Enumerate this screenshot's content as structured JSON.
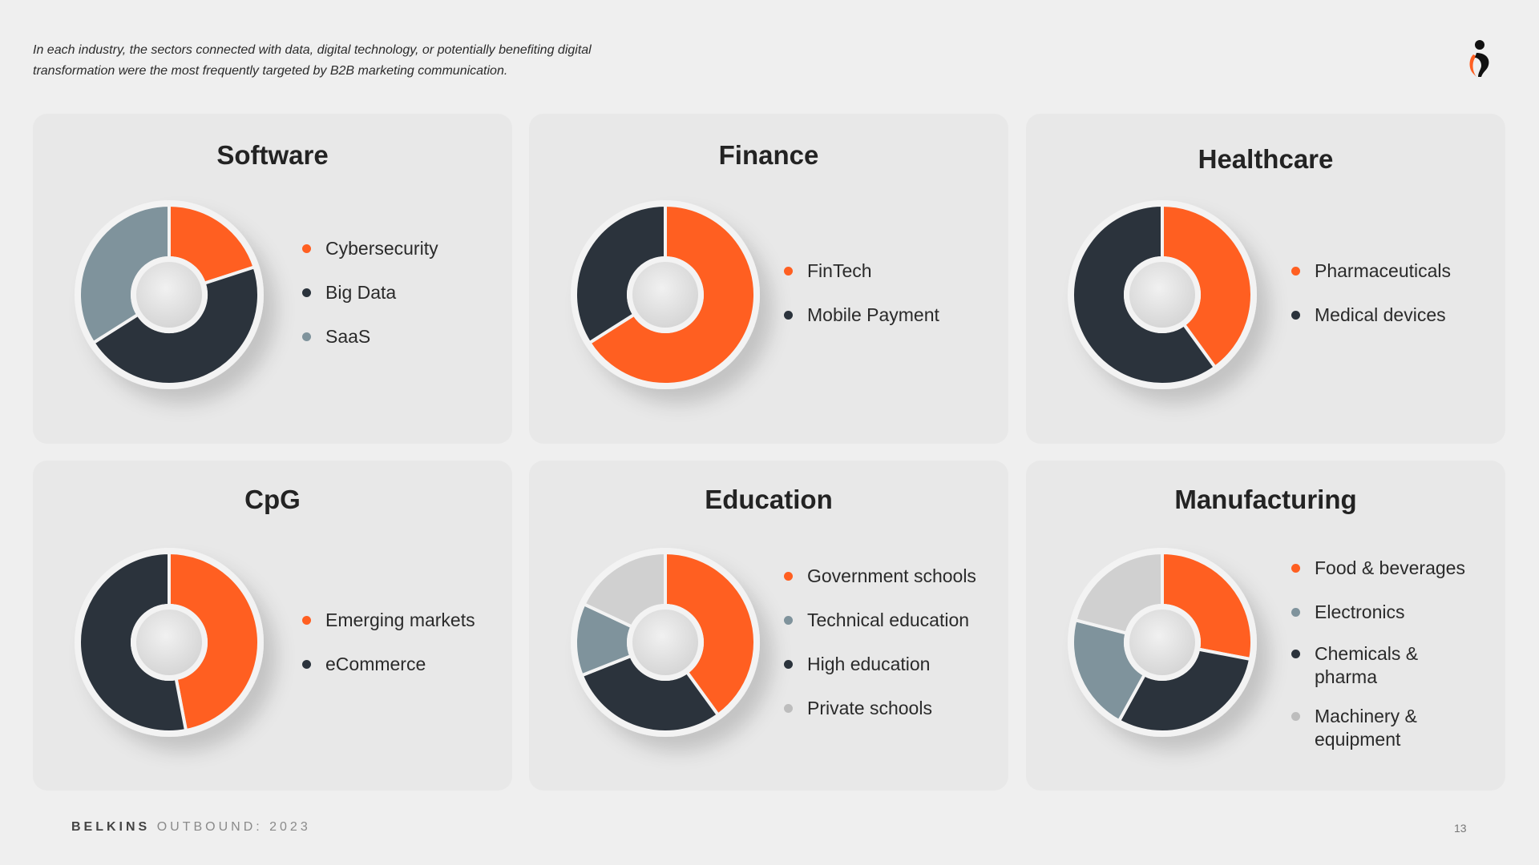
{
  "intro_text": "In each industry, the sectors connected with data, digital technology, or potentially benefiting digital transformation were the most frequently targeted by B2B marketing communication.",
  "logo_icon": "belkins-logo-icon",
  "footer": {
    "brand_bold": "BELKINS",
    "brand_rest": "OUTBOUND: 2023",
    "page_number": "13"
  },
  "colors": {
    "orange": "#ff5f21",
    "dark": "#2b333c",
    "steel": "#7f939c",
    "light": "#d0d0d0"
  },
  "chart_data": [
    {
      "type": "pie",
      "title": "Software",
      "categories": [
        "Cybersecurity",
        "Big Data",
        "SaaS"
      ],
      "values": [
        20,
        46,
        34
      ],
      "colors": [
        "#ff5f21",
        "#2b333c",
        "#7f939c"
      ]
    },
    {
      "type": "pie",
      "title": "Finance",
      "categories": [
        "FinTech",
        "Mobile Payment"
      ],
      "values": [
        66,
        34
      ],
      "colors": [
        "#ff5f21",
        "#2b333c"
      ]
    },
    {
      "type": "pie",
      "title": "Healthcare",
      "categories": [
        "Pharmaceuticals",
        "Medical devices"
      ],
      "values": [
        40,
        60
      ],
      "colors": [
        "#ff5f21",
        "#2b333c"
      ]
    },
    {
      "type": "pie",
      "title": "CpG",
      "categories": [
        "Emerging markets",
        "eCommerce"
      ],
      "values": [
        47,
        53
      ],
      "colors": [
        "#ff5f21",
        "#2b333c"
      ]
    },
    {
      "type": "pie",
      "title": "Education",
      "categories": [
        "Government schools",
        "Technical education",
        "High education",
        "Private schools"
      ],
      "values": [
        40,
        13,
        29,
        18
      ],
      "colors": [
        "#ff5f21",
        "#7f939c",
        "#2b333c",
        "#d0d0d0"
      ],
      "draw_order": [
        0,
        2,
        1,
        3
      ]
    },
    {
      "type": "pie",
      "title": "Manufacturing",
      "categories": [
        "Food & beverages",
        "Electronics",
        "Chemicals & pharma",
        "Machinery & equipment"
      ],
      "values": [
        28,
        21,
        30,
        21
      ],
      "colors": [
        "#ff5f21",
        "#7f939c",
        "#2b333c",
        "#d0d0d0"
      ],
      "draw_order": [
        0,
        2,
        1,
        3
      ]
    }
  ]
}
